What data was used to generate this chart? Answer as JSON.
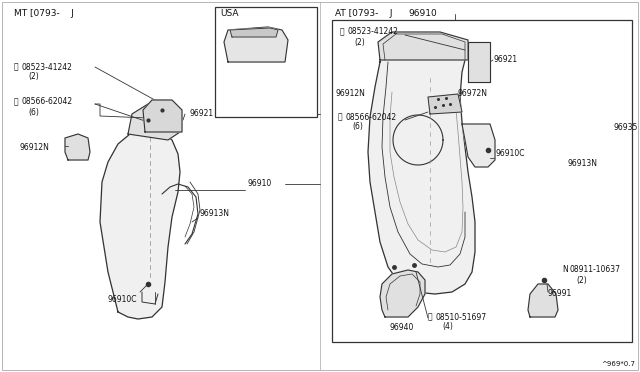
{
  "bg": "white",
  "lc": "#333333",
  "tc": "#111111",
  "mt_label": "MT [0793-    J",
  "at_label": "AT [0793-    J   96910",
  "usa_label": "USA",
  "footer": "^969*0.7"
}
